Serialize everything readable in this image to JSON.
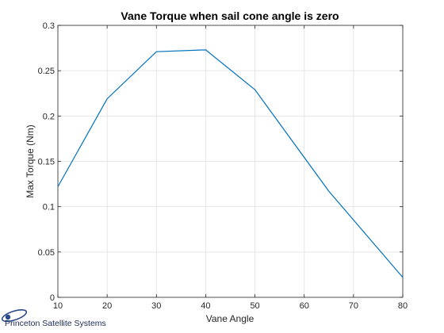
{
  "chart_data": {
    "type": "line",
    "title": "Vane Torque when sail cone angle is zero",
    "xlabel": "Vane Angle",
    "ylabel": "Max Torque (Nm)",
    "xlim": [
      10,
      80
    ],
    "ylim": [
      0,
      0.3
    ],
    "xticks": [
      10,
      20,
      30,
      40,
      50,
      60,
      70,
      80
    ],
    "yticks": [
      0,
      0.05,
      0.1,
      0.15,
      0.2,
      0.25,
      0.3
    ],
    "xtick_labels": [
      "10",
      "20",
      "30",
      "40",
      "50",
      "60",
      "70",
      "80"
    ],
    "ytick_labels": [
      "0",
      "0.05",
      "0.1",
      "0.15",
      "0.2",
      "0.25",
      "0.3"
    ],
    "grid": true,
    "series": [
      {
        "color": "#0072BD",
        "x": [
          10,
          20,
          30,
          40,
          50,
          65,
          80
        ],
        "y": [
          0.122,
          0.219,
          0.271,
          0.273,
          0.229,
          0.117,
          0.022
        ]
      }
    ]
  },
  "logo": {
    "text": "Princeton Satellite Systems"
  }
}
